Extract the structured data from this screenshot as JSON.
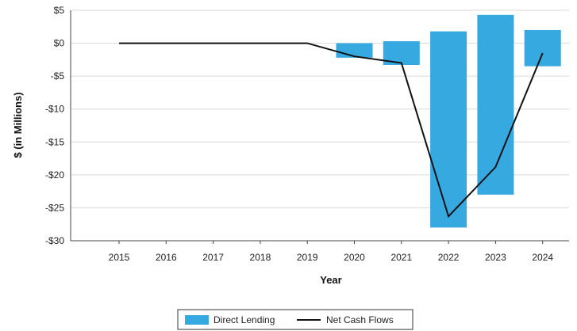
{
  "chart_data": {
    "type": "bar",
    "categories": [
      "2015",
      "2016",
      "2017",
      "2018",
      "2019",
      "2020",
      "2021",
      "2022",
      "2023",
      "2024"
    ],
    "series": [
      {
        "name": "Direct Lending",
        "kind": "bar",
        "color": "#36a9e1",
        "ranges": [
          null,
          null,
          null,
          null,
          null,
          [
            -2.2,
            0.0
          ],
          [
            -3.3,
            0.3
          ],
          [
            -28.0,
            1.8
          ],
          [
            -23.0,
            4.3
          ],
          [
            -3.5,
            2.0
          ]
        ]
      },
      {
        "name": "Net Cash Flows",
        "kind": "line",
        "color": "#111111",
        "values": [
          0.0,
          0.0,
          0.0,
          0.0,
          0.0,
          -2.0,
          -3.0,
          -26.3,
          -18.8,
          -1.5
        ]
      }
    ],
    "xlabel": "Year",
    "ylabel": "$ (in Millions)",
    "ylim": [
      -30,
      5
    ],
    "yticks": [
      5,
      0,
      -5,
      -10,
      -15,
      -20,
      -25,
      -30
    ],
    "ytick_labels": [
      "$5",
      "$0",
      "-$5",
      "-$10",
      "-$15",
      "-$20",
      "-$25",
      "-$30"
    ],
    "grid": "horizontal",
    "grid_color": "#d9d9d9",
    "legend_position": "bottom"
  }
}
